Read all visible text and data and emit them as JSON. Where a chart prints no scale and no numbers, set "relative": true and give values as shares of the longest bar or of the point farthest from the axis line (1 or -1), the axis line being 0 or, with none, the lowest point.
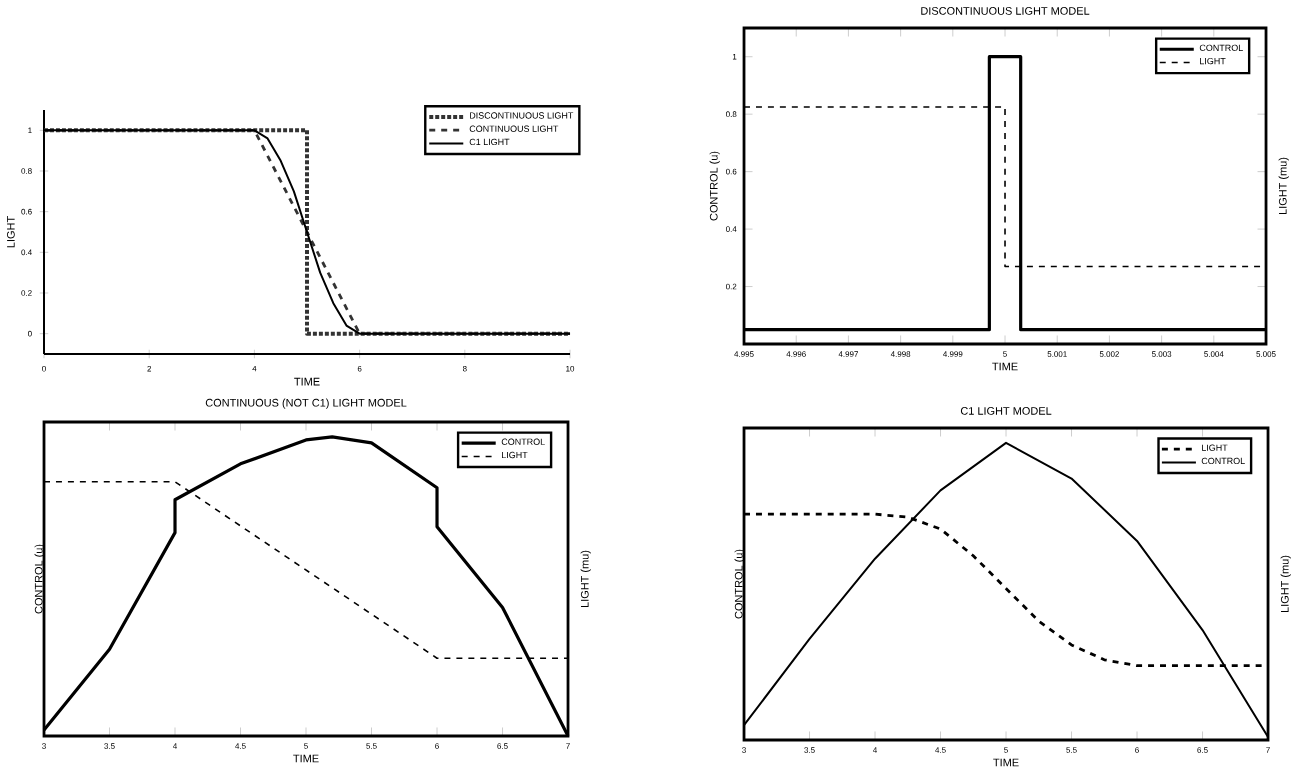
{
  "chart_data": [
    {
      "type": "line",
      "xlabel": "TIME",
      "ylabel": "LIGHT",
      "xlim": [
        0,
        10
      ],
      "ylim": [
        -0.1,
        1.1
      ],
      "xticks": [
        0,
        2,
        4,
        6,
        8,
        10
      ],
      "yticks": [
        0,
        0.2,
        0.4,
        0.6,
        0.8,
        1
      ],
      "legend": "top right",
      "grid": false,
      "marker": "none",
      "series": [
        {
          "name": "DISCONTINUOUS LIGHT",
          "color": "#333333",
          "line_style": "dotted",
          "x": [
            0,
            5,
            5,
            10
          ],
          "values": [
            1,
            1,
            0,
            0
          ]
        },
        {
          "name": "CONTINUOUS LIGHT",
          "color": "#333333",
          "line_style": "dashed",
          "x": [
            0,
            4,
            6,
            10
          ],
          "values": [
            1,
            1,
            0,
            0
          ]
        },
        {
          "name": "C1 LIGHT",
          "color": "#000000",
          "line_style": "solid",
          "x": [
            0,
            4,
            4.25,
            4.5,
            4.75,
            5,
            5.25,
            5.5,
            5.75,
            6,
            10
          ],
          "values": [
            1,
            1,
            0.96,
            0.85,
            0.7,
            0.5,
            0.3,
            0.15,
            0.04,
            0,
            0
          ]
        }
      ]
    },
    {
      "type": "line",
      "title": "DISCONTINUOUS LIGHT MODEL",
      "xlabel": "TIME",
      "ylabel": "CONTROL (u)",
      "y2label": "LIGHT (mu)",
      "xlim": [
        4.995,
        5.005
      ],
      "ylim": [
        0,
        1.1
      ],
      "xticks": [
        4.995,
        4.996,
        4.997,
        4.998,
        4.999,
        5,
        5.001,
        5.002,
        5.003,
        5.004,
        5.005
      ],
      "yticks": [
        0.2,
        0.4,
        0.6,
        0.8,
        1
      ],
      "legend": "top right",
      "grid": false,
      "marker": "none",
      "series": [
        {
          "name": "CONTROL",
          "color": "#000000",
          "line_style": "solid",
          "x": [
            4.995,
            4.9997,
            4.9997,
            5.0003,
            5.0003,
            5.005
          ],
          "values": [
            0.05,
            0.05,
            1,
            1,
            0.05,
            0.05
          ]
        },
        {
          "name": "LIGHT",
          "color": "#000000",
          "line_style": "dashed",
          "x": [
            4.995,
            5.0,
            5.0,
            5.005
          ],
          "values": [
            0.825,
            0.825,
            0.27,
            0.27
          ]
        }
      ]
    },
    {
      "type": "line",
      "title": "CONTINUOUS (NOT C1) LIGHT MODEL",
      "xlabel": "TIME",
      "ylabel": "CONTROL (u)",
      "y2label": "LIGHT (mu)",
      "relative": true,
      "xlim": [
        3,
        7
      ],
      "xticks": [
        3,
        3.5,
        4,
        4.5,
        5,
        5.5,
        6,
        6.5,
        7
      ],
      "legend": "top right",
      "grid": false,
      "marker": "none",
      "tick_labels": "x",
      "series": [
        {
          "name": "CONTROL",
          "color": "#000000",
          "line_style": "solid",
          "x": [
            3,
            3.5,
            4,
            4,
            4.5,
            5,
            5.2,
            5.5,
            6,
            6,
            6.5,
            7
          ],
          "values": [
            0.02,
            0.29,
            0.68,
            0.79,
            0.91,
            0.99,
            1,
            0.98,
            0.83,
            0.7,
            0.43,
            0
          ]
        },
        {
          "name": "LIGHT",
          "color": "#000000",
          "line_style": "dashed",
          "x": [
            3,
            4,
            6,
            7
          ],
          "values": [
            0.85,
            0.85,
            0.26,
            0.26
          ]
        }
      ]
    },
    {
      "type": "line",
      "title": "C1 LIGHT MODEL",
      "xlabel": "TIME",
      "ylabel": "CONTROL (u)",
      "y2label": "LIGHT (mu)",
      "relative": true,
      "xlim": [
        3,
        7
      ],
      "xticks": [
        3,
        3.5,
        4,
        4.5,
        5,
        5.5,
        6,
        6.5,
        7
      ],
      "legend": "top right",
      "grid": false,
      "marker": "none",
      "tick_labels": "x",
      "series": [
        {
          "name": "LIGHT",
          "color": "#000000",
          "line_style": "dashed",
          "x": [
            3,
            4,
            4.25,
            4.5,
            4.75,
            5,
            5.25,
            5.5,
            5.75,
            6,
            7
          ],
          "values": [
            0.76,
            0.76,
            0.75,
            0.71,
            0.62,
            0.51,
            0.4,
            0.32,
            0.27,
            0.25,
            0.25
          ]
        },
        {
          "name": "CONTROL",
          "color": "#000000",
          "line_style": "solid",
          "x": [
            3,
            3.5,
            4,
            4.5,
            5,
            5.5,
            6,
            6.5,
            7
          ],
          "values": [
            0.05,
            0.34,
            0.61,
            0.84,
            1,
            0.88,
            0.67,
            0.37,
            0.01
          ]
        }
      ]
    }
  ]
}
